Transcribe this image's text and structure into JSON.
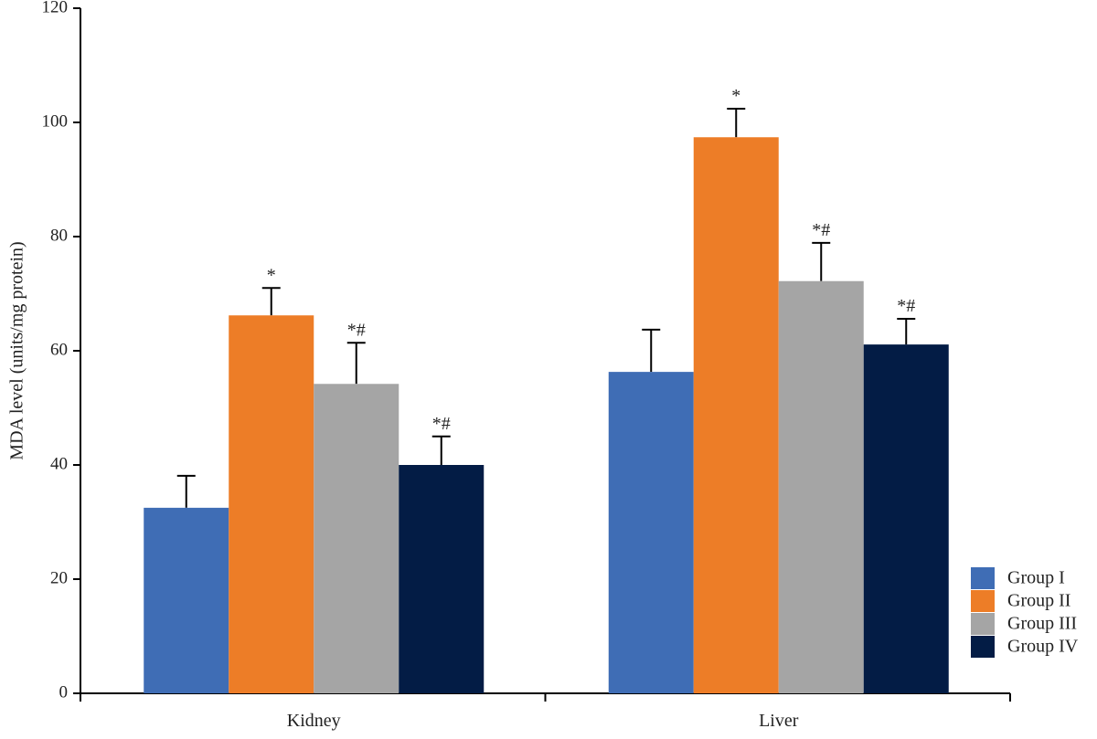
{
  "chart_data": {
    "type": "bar",
    "title": "",
    "xlabel": "",
    "ylabel": "MDA level (units/mg protein)",
    "ylim": [
      0,
      120
    ],
    "yticks": [
      0,
      20,
      40,
      60,
      80,
      100,
      120
    ],
    "grid": false,
    "legend_position": "bottom-right",
    "categories": [
      "Kidney",
      "Liver"
    ],
    "series": [
      {
        "name": "Group I",
        "color": "#3f6db5",
        "values": [
          32.5,
          56.3
        ],
        "errors": [
          5.6,
          7.4
        ],
        "annotations": [
          "",
          ""
        ]
      },
      {
        "name": "Group II",
        "color": "#ed7d27",
        "values": [
          66.2,
          97.4
        ],
        "errors": [
          4.8,
          5.0
        ],
        "annotations": [
          "*",
          "*"
        ]
      },
      {
        "name": "Group III",
        "color": "#a5a5a5",
        "values": [
          54.2,
          72.2
        ],
        "errors": [
          7.2,
          6.7
        ],
        "annotations": [
          "*#",
          "*#"
        ]
      },
      {
        "name": "Group IV",
        "color": "#031c45",
        "values": [
          40.0,
          61.1
        ],
        "errors": [
          5.0,
          4.5
        ],
        "annotations": [
          "*#",
          "*#"
        ]
      }
    ]
  }
}
